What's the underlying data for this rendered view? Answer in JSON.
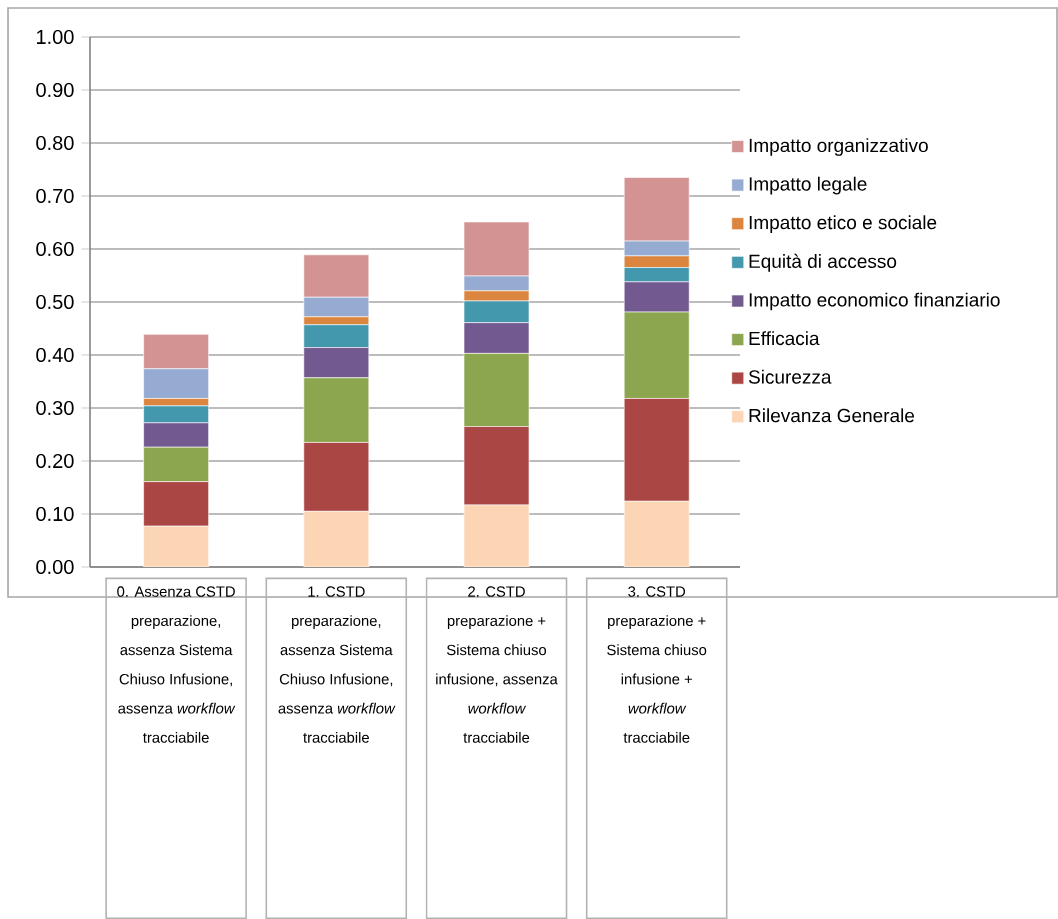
{
  "chart_data": {
    "type": "bar",
    "stacked": true,
    "categories": [
      "0. Assenza CSTD preparazione, assenza Sistema Chiuso Infusione, assenza *workflow* tracciabile",
      "1. CSTD preparazione, assenza Sistema Chiuso Infusione, assenza *workflow* tracciabile",
      "2. CSTD preparazione + Sistema chiuso infusione, assenza *workflow* tracciabile",
      "3. CSTD preparazione + Sistema chiuso infusione + *workflow* tracciabile"
    ],
    "series": [
      {
        "name": "Rilevanza Generale",
        "color": "#fcd5b5",
        "values": [
          0.077,
          0.105,
          0.117,
          0.124
        ]
      },
      {
        "name": "Sicurezza",
        "color": "#aa4644",
        "values": [
          0.084,
          0.13,
          0.148,
          0.194
        ]
      },
      {
        "name": "Efficacia",
        "color": "#8ba64e",
        "values": [
          0.065,
          0.122,
          0.138,
          0.163
        ]
      },
      {
        "name": "Impatto economico finanziario",
        "color": "#725990",
        "values": [
          0.046,
          0.057,
          0.058,
          0.057
        ]
      },
      {
        "name": "Equità di accesso",
        "color": "#4398ae",
        "values": [
          0.032,
          0.043,
          0.041,
          0.027
        ]
      },
      {
        "name": "Impatto etico e sociale",
        "color": "#dc853e",
        "values": [
          0.014,
          0.015,
          0.019,
          0.022
        ]
      },
      {
        "name": "Impatto legale",
        "color": "#95abd2",
        "values": [
          0.056,
          0.037,
          0.028,
          0.028
        ]
      },
      {
        "name": "Impatto organizzativo",
        "color": "#d39393",
        "values": [
          0.065,
          0.08,
          0.102,
          0.12
        ]
      }
    ],
    "ylim": [
      0,
      1.0
    ],
    "yticks": [
      {
        "value": 0,
        "label": "0.00"
      },
      {
        "value": 0.1,
        "label": "0.10"
      },
      {
        "value": 0.2,
        "label": "0.20"
      },
      {
        "value": 0.3,
        "label": "0.30"
      },
      {
        "value": 0.4,
        "label": "0.40"
      },
      {
        "value": 0.5,
        "label": "0.50"
      },
      {
        "value": 0.6,
        "label": "0.60"
      },
      {
        "value": 0.7,
        "label": "0.70"
      },
      {
        "value": 0.8,
        "label": "0.80"
      },
      {
        "value": 0.9,
        "label": "0.90"
      },
      {
        "value": 1.0,
        "label": "1.00"
      }
    ],
    "grid": "y",
    "legend": "right"
  }
}
